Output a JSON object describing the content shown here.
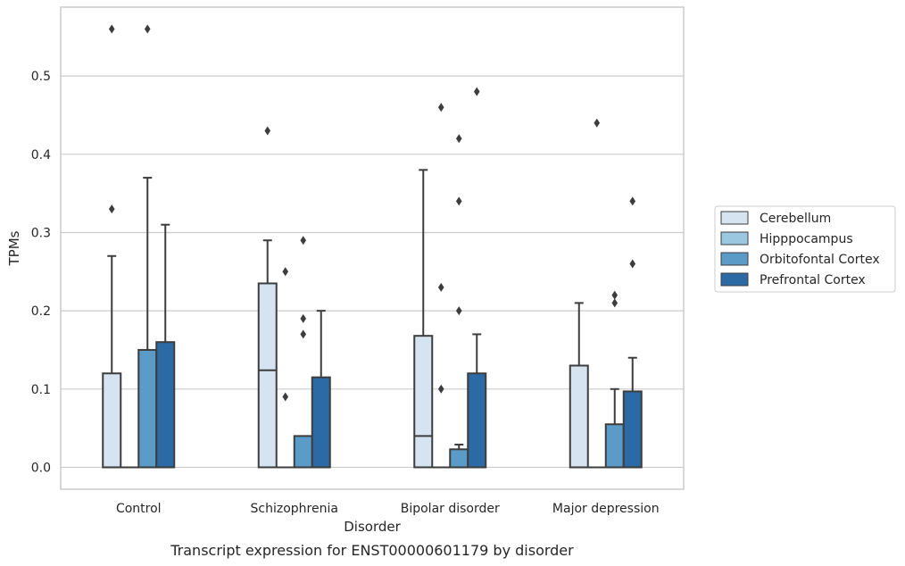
{
  "chart_data": {
    "type": "box",
    "caption": "Transcript expression for ENST00000601179 by disorder",
    "xlabel": "Disorder",
    "ylabel": "TPMs",
    "ylim": [
      -0.028,
      0.588
    ],
    "yticks": [
      0.0,
      0.1,
      0.2,
      0.3,
      0.4,
      0.5
    ],
    "ytick_labels": [
      "0.0",
      "0.1",
      "0.2",
      "0.3",
      "0.4",
      "0.5"
    ],
    "grid": "horizontal",
    "legend_position": "right",
    "categories": [
      "Control",
      "Schizophrenia",
      "Bipolar disorder",
      "Major depression"
    ],
    "series": [
      {
        "name": "Cerebellum",
        "color": "#d6e4f1",
        "boxes": [
          {
            "q1": 0.0,
            "median": 0.0,
            "q3": 0.12,
            "whisker_low": 0.0,
            "whisker_high": 0.27,
            "outliers": [
              0.33,
              0.56
            ]
          },
          {
            "q1": 0.0,
            "median": 0.124,
            "q3": 0.235,
            "whisker_low": 0.0,
            "whisker_high": 0.29,
            "outliers": [
              0.43
            ]
          },
          {
            "q1": 0.0,
            "median": 0.04,
            "q3": 0.168,
            "whisker_low": 0.0,
            "whisker_high": 0.38,
            "outliers": []
          },
          {
            "q1": 0.0,
            "median": 0.0,
            "q3": 0.13,
            "whisker_low": 0.0,
            "whisker_high": 0.21,
            "outliers": []
          }
        ]
      },
      {
        "name": "Hipppocampus",
        "color": "#9ac8e0",
        "boxes": [
          {
            "q1": 0.0,
            "median": 0.0,
            "q3": 0.0,
            "whisker_low": 0.0,
            "whisker_high": 0.0,
            "outliers": []
          },
          {
            "q1": 0.0,
            "median": 0.0,
            "q3": 0.0,
            "whisker_low": 0.0,
            "whisker_high": 0.0,
            "outliers": [
              0.09,
              0.25
            ]
          },
          {
            "q1": 0.0,
            "median": 0.0,
            "q3": 0.0,
            "whisker_low": 0.0,
            "whisker_high": 0.0,
            "outliers": [
              0.1,
              0.23,
              0.46
            ]
          },
          {
            "q1": 0.0,
            "median": 0.0,
            "q3": 0.0,
            "whisker_low": 0.0,
            "whisker_high": 0.0,
            "outliers": [
              0.44
            ]
          }
        ]
      },
      {
        "name": "Orbitofontal Cortex",
        "color": "#5a9bc8",
        "boxes": [
          {
            "q1": 0.0,
            "median": 0.0,
            "q3": 0.15,
            "whisker_low": 0.0,
            "whisker_high": 0.37,
            "outliers": [
              0.56
            ]
          },
          {
            "q1": 0.0,
            "median": 0.0,
            "q3": 0.04,
            "whisker_low": 0.0,
            "whisker_high": 0.04,
            "outliers": [
              0.17,
              0.19,
              0.29
            ]
          },
          {
            "q1": 0.0,
            "median": 0.0,
            "q3": 0.023,
            "whisker_low": 0.0,
            "whisker_high": 0.029,
            "outliers": [
              0.2,
              0.34,
              0.42
            ]
          },
          {
            "q1": 0.0,
            "median": 0.0,
            "q3": 0.055,
            "whisker_low": 0.0,
            "whisker_high": 0.1,
            "outliers": [
              0.21,
              0.22
            ]
          }
        ]
      },
      {
        "name": "Prefrontal Cortex",
        "color": "#2b6aa5",
        "boxes": [
          {
            "q1": 0.0,
            "median": 0.0,
            "q3": 0.16,
            "whisker_low": 0.0,
            "whisker_high": 0.31,
            "outliers": []
          },
          {
            "q1": 0.0,
            "median": 0.0,
            "q3": 0.115,
            "whisker_low": 0.0,
            "whisker_high": 0.2,
            "outliers": []
          },
          {
            "q1": 0.0,
            "median": 0.0,
            "q3": 0.12,
            "whisker_low": 0.0,
            "whisker_high": 0.17,
            "outliers": [
              0.48
            ]
          },
          {
            "q1": 0.0,
            "median": 0.0,
            "q3": 0.097,
            "whisker_low": 0.0,
            "whisker_high": 0.14,
            "outliers": [
              0.26,
              0.34
            ]
          }
        ]
      }
    ]
  },
  "colors": {
    "grid": "#cccccc",
    "frame": "#cccccc",
    "edge": "#3d3d3d",
    "text": "#262626"
  }
}
